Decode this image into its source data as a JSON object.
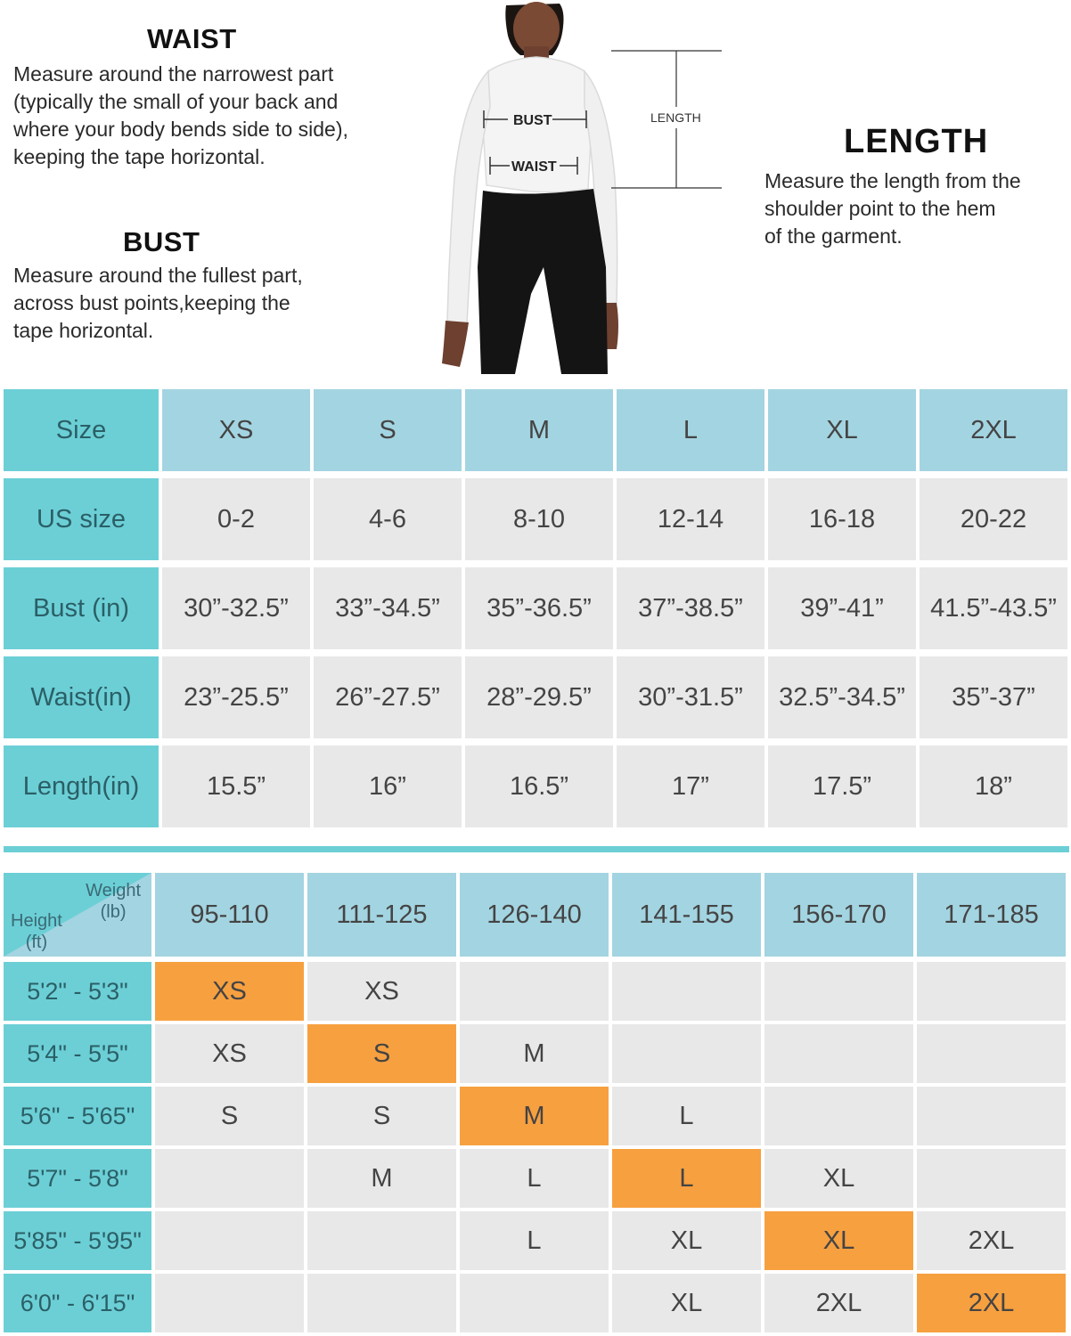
{
  "waist": {
    "title": "WAIST",
    "lines": [
      "Measure around the narrowest part",
      "(typically the small of your back and",
      "where your body bends side to side),",
      "keeping the tape horizontal."
    ]
  },
  "bust": {
    "title": "BUST",
    "lines": [
      "Measure around the fullest part,",
      "across bust points,keeping the",
      "tape horizontal."
    ]
  },
  "length": {
    "title": "LENGTH",
    "lines": [
      "Measure the length from the",
      "shoulder point to the hem",
      "of the garment."
    ]
  },
  "figure": {
    "bust_label": "BUST",
    "waist_label": "WAIST",
    "length_label": "LENGTH"
  },
  "size_table": {
    "rows": [
      {
        "label": "Size",
        "cells": [
          "XS",
          "S",
          "M",
          "L",
          "XL",
          "2XL"
        ]
      },
      {
        "label": "US size",
        "cells": [
          "0-2",
          "4-6",
          "8-10",
          "12-14",
          "16-18",
          "20-22"
        ]
      },
      {
        "label": "Bust (in)",
        "cells": [
          "30”-32.5”",
          "33”-34.5”",
          "35”-36.5”",
          "37”-38.5”",
          "39”-41”",
          "41.5”-43.5”"
        ]
      },
      {
        "label": "Waist(in)",
        "cells": [
          "23”-25.5”",
          "26”-27.5”",
          "28”-29.5”",
          "30”-31.5”",
          "32.5”-34.5”",
          "35”-37”"
        ]
      },
      {
        "label": "Length(in)",
        "cells": [
          "15.5”",
          "16”",
          "16.5”",
          "17”",
          "17.5”",
          "18”"
        ]
      }
    ]
  },
  "fit_table": {
    "corner_weight": [
      "Weight",
      "(lb)"
    ],
    "corner_height": [
      "Height",
      "(ft)"
    ],
    "weights": [
      "95-110",
      "111-125",
      "126-140",
      "141-155",
      "156-170",
      "171-185"
    ],
    "rows": [
      {
        "height": "5'2\" - 5'3\"",
        "cells": [
          "XS",
          "XS",
          "",
          "",
          "",
          ""
        ],
        "highlight": 0
      },
      {
        "height": "5'4\" - 5'5\"",
        "cells": [
          "XS",
          "S",
          "M",
          "",
          "",
          ""
        ],
        "highlight": 1
      },
      {
        "height": "5'6\" - 5'65\"",
        "cells": [
          "S",
          "S",
          "M",
          "L",
          "",
          ""
        ],
        "highlight": 2
      },
      {
        "height": "5'7\" - 5'8\"",
        "cells": [
          "",
          "M",
          "L",
          "L",
          "XL",
          ""
        ],
        "highlight": 3
      },
      {
        "height": "5'85\" - 5'95\"",
        "cells": [
          "",
          "",
          "L",
          "XL",
          "XL",
          "2XL"
        ],
        "highlight": 4
      },
      {
        "height": "6'0\" - 6'15\"",
        "cells": [
          "",
          "",
          "",
          "XL",
          "2XL",
          "2XL"
        ],
        "highlight": 5
      }
    ]
  },
  "colors": {
    "label_teal": "#6ccfd6",
    "header_blue": "#a3d4e1",
    "cell_gray": "#e8e8e8",
    "highlight_orange": "#f7a040"
  }
}
